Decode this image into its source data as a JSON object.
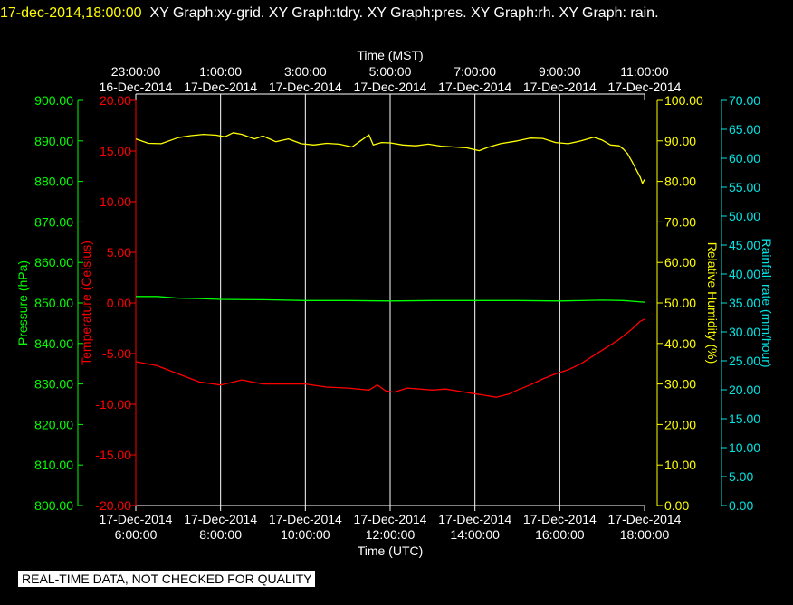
{
  "header": {
    "timestamp": "17-dec-2014,18:00:00",
    "description": "XY Graph:xy-grid.  XY Graph:tdry.  XY Graph:pres.  XY Graph:rh.  XY Graph: rain."
  },
  "banner": "REAL-TIME DATA, NOT CHECKED FOR QUALITY",
  "colors": {
    "background": "#000000",
    "grid": "#ffffff",
    "temperature": "#ff0000",
    "pressure": "#00ff00",
    "humidity": "#ffff00",
    "rainfall": "#00e5e5"
  },
  "chart_data": {
    "type": "line",
    "grid": true,
    "top_axis": {
      "label": "Time (MST)",
      "ticks": [
        {
          "time": "23:00:00",
          "date": "16-Dec-2014"
        },
        {
          "time": "1:00:00",
          "date": "17-Dec-2014"
        },
        {
          "time": "3:00:00",
          "date": "17-Dec-2014"
        },
        {
          "time": "5:00:00",
          "date": "17-Dec-2014"
        },
        {
          "time": "7:00:00",
          "date": "17-Dec-2014"
        },
        {
          "time": "9:00:00",
          "date": "17-Dec-2014"
        },
        {
          "time": "11:00:00",
          "date": "17-Dec-2014"
        }
      ]
    },
    "bottom_axis": {
      "label": "Time (UTC)",
      "xlim": [
        6,
        18
      ],
      "ticks": [
        {
          "date": "17-Dec-2014",
          "time": "6:00:00",
          "hour": 6
        },
        {
          "date": "17-Dec-2014",
          "time": "8:00:00",
          "hour": 8
        },
        {
          "date": "17-Dec-2014",
          "time": "10:00:00",
          "hour": 10
        },
        {
          "date": "17-Dec-2014",
          "time": "12:00:00",
          "hour": 12
        },
        {
          "date": "17-Dec-2014",
          "time": "14:00:00",
          "hour": 14
        },
        {
          "date": "17-Dec-2014",
          "time": "16:00:00",
          "hour": 16
        },
        {
          "date": "17-Dec-2014",
          "time": "18:00:00",
          "hour": 18
        }
      ]
    },
    "axes": {
      "pressure": {
        "label": "Pressure (hPa)",
        "ylim": [
          800,
          900
        ],
        "ticks": [
          "800.00",
          "810.00",
          "820.00",
          "830.00",
          "840.00",
          "850.00",
          "860.00",
          "870.00",
          "880.00",
          "890.00",
          "900.00"
        ]
      },
      "temperature": {
        "label": "Temperature (Celsius)",
        "ylim": [
          -20,
          20
        ],
        "ticks": [
          "-20.00",
          "-15.00",
          "-10.00",
          "-5.00",
          "0.00",
          "5.00",
          "10.00",
          "15.00",
          "20.00"
        ]
      },
      "humidity": {
        "label": "Relative Humidity (%)",
        "ylim": [
          0,
          100
        ],
        "ticks": [
          "0.00",
          "10.00",
          "20.00",
          "30.00",
          "40.00",
          "50.00",
          "60.00",
          "70.00",
          "80.00",
          "90.00",
          "100.00"
        ]
      },
      "rainfall": {
        "label": "Rainfall rate (mm/hour)",
        "ylim": [
          0,
          70
        ],
        "ticks": [
          "0.00",
          "5.00",
          "10.00",
          "15.00",
          "20.00",
          "25.00",
          "30.00",
          "35.00",
          "40.00",
          "45.00",
          "50.00",
          "55.00",
          "60.00",
          "65.00",
          "70.00"
        ]
      }
    },
    "series": [
      {
        "key": "humidity",
        "x": [
          6.0,
          6.3,
          6.6,
          7.0,
          7.3,
          7.6,
          7.9,
          8.1,
          8.3,
          8.5,
          8.8,
          9.0,
          9.3,
          9.6,
          9.9,
          10.2,
          10.5,
          10.8,
          11.1,
          11.3,
          11.5,
          11.6,
          11.8,
          12.0,
          12.3,
          12.6,
          12.9,
          13.2,
          13.5,
          13.8,
          14.1,
          14.3,
          14.6,
          15.0,
          15.3,
          15.6,
          15.9,
          16.2,
          16.5,
          16.8,
          17.0,
          17.2,
          17.4,
          17.5,
          17.6,
          17.7,
          17.8,
          17.9,
          17.95,
          18.0
        ],
        "values": [
          90.5,
          89.4,
          89.3,
          90.8,
          91.3,
          91.6,
          91.4,
          91.0,
          92.0,
          91.6,
          90.5,
          91.2,
          89.8,
          90.5,
          89.3,
          89.0,
          89.4,
          89.2,
          88.5,
          90.0,
          91.5,
          89.0,
          89.6,
          89.5,
          89.0,
          88.8,
          89.2,
          88.7,
          88.5,
          88.3,
          87.6,
          88.4,
          89.3,
          90.0,
          90.7,
          90.6,
          89.6,
          89.3,
          90.0,
          90.9,
          90.2,
          89.0,
          88.8,
          88.0,
          86.8,
          85.0,
          83.0,
          81.0,
          79.5,
          80.5
        ]
      },
      {
        "key": "temperature",
        "x": [
          6.0,
          6.5,
          7.0,
          7.5,
          8.0,
          8.5,
          9.0,
          9.5,
          10.0,
          10.5,
          11.0,
          11.5,
          11.7,
          11.9,
          12.1,
          12.4,
          12.7,
          13.0,
          13.3,
          13.6,
          13.9,
          14.2,
          14.5,
          14.8,
          15.0,
          15.3,
          15.6,
          15.9,
          16.2,
          16.5,
          16.8,
          17.1,
          17.4,
          17.7,
          17.9,
          18.0
        ],
        "values": [
          -5.8,
          -6.2,
          -7.0,
          -7.8,
          -8.1,
          -7.6,
          -8.0,
          -8.0,
          -8.0,
          -8.3,
          -8.4,
          -8.6,
          -8.1,
          -8.7,
          -8.8,
          -8.4,
          -8.5,
          -8.6,
          -8.5,
          -8.7,
          -8.9,
          -9.1,
          -9.3,
          -9.0,
          -8.6,
          -8.1,
          -7.5,
          -7.0,
          -6.6,
          -6.0,
          -5.2,
          -4.4,
          -3.6,
          -2.6,
          -1.8,
          -1.6
        ]
      },
      {
        "key": "pressure",
        "x": [
          6.0,
          6.5,
          7.0,
          7.5,
          8.0,
          9.0,
          10.0,
          11.0,
          12.0,
          13.0,
          14.0,
          15.0,
          16.0,
          17.0,
          17.5,
          18.0
        ],
        "values": [
          851.6,
          851.6,
          851.2,
          851.1,
          850.9,
          850.8,
          850.6,
          850.6,
          850.5,
          850.6,
          850.6,
          850.6,
          850.5,
          850.7,
          850.6,
          850.2
        ]
      }
    ]
  }
}
